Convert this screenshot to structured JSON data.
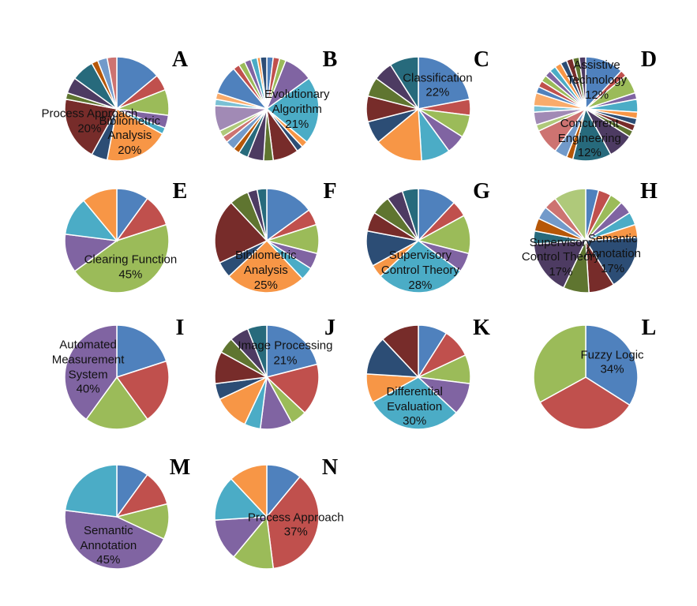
{
  "palette": [
    "#4F81BD",
    "#C0504D",
    "#9BBB59",
    "#8064A2",
    "#4BACC6",
    "#F79646",
    "#2C4D75",
    "#772C2A",
    "#5F7530",
    "#4D3B62",
    "#276A7C",
    "#B65708",
    "#729ACA",
    "#CD7371",
    "#AFC97A",
    "#A18AB5",
    "#7AC0D4",
    "#F9AB6B"
  ],
  "chart_data": [
    {
      "type": "pie",
      "title": "A",
      "values": [
        14,
        5,
        8,
        4,
        2,
        20,
        5,
        20,
        2,
        5,
        7,
        2,
        3,
        3
      ],
      "categories": [
        null,
        null,
        null,
        null,
        null,
        "Bibliometric Analysis",
        null,
        "Process Approach",
        null,
        null,
        null,
        null,
        null,
        null
      ],
      "value_labels": [
        null,
        null,
        null,
        null,
        null,
        "20%",
        null,
        "20%",
        null,
        null,
        null,
        null,
        null,
        null
      ]
    },
    {
      "type": "pie",
      "title": "B",
      "values": [
        2,
        2,
        2,
        9,
        21,
        2,
        2,
        8,
        3,
        5,
        3,
        2,
        3,
        2,
        2,
        8,
        2,
        2,
        9,
        2,
        2,
        2,
        2,
        1,
        2
      ],
      "categories": [
        null,
        null,
        null,
        null,
        "Evolutionary Algorithm",
        null,
        null,
        null,
        null,
        null,
        null,
        null,
        null,
        null,
        null,
        null,
        null,
        null,
        null,
        null,
        null,
        null,
        null,
        null,
        null
      ],
      "value_labels": [
        null,
        null,
        null,
        null,
        "21%",
        null,
        null,
        null,
        null,
        null,
        null,
        null,
        null,
        null,
        null,
        null,
        null,
        null,
        null,
        null,
        null,
        null,
        null,
        null,
        null
      ]
    },
    {
      "type": "pie",
      "title": "C",
      "values": [
        22,
        5,
        7,
        6,
        9,
        15,
        7,
        8,
        6,
        6,
        9
      ],
      "categories": [
        "Classification",
        null,
        null,
        null,
        null,
        null,
        null,
        null,
        null,
        null,
        null
      ],
      "value_labels": [
        "22%",
        null,
        null,
        null,
        null,
        null,
        null,
        null,
        null,
        null,
        null
      ]
    },
    {
      "type": "pie",
      "title": "D",
      "values": [
        12,
        2,
        6,
        2,
        4,
        2,
        2,
        2,
        2,
        8,
        12,
        2,
        4,
        8,
        2,
        4,
        2,
        4,
        2,
        2,
        2,
        2,
        2,
        2,
        2,
        2,
        2,
        2
      ],
      "categories": [
        "Assistive Technology",
        null,
        null,
        null,
        null,
        null,
        null,
        null,
        null,
        null,
        "Concurrent Engineering",
        null,
        null,
        null,
        null,
        null,
        null,
        null,
        null,
        null,
        null,
        null,
        null,
        null,
        null,
        null,
        null,
        null
      ],
      "value_labels": [
        "12%",
        null,
        null,
        null,
        null,
        null,
        null,
        null,
        null,
        null,
        "12%",
        null,
        null,
        null,
        null,
        null,
        null,
        null,
        null,
        null,
        null,
        null,
        null,
        null,
        null,
        null,
        null,
        null
      ]
    },
    {
      "type": "pie",
      "title": "E",
      "values": [
        10,
        10,
        45,
        12,
        12,
        11
      ],
      "categories": [
        null,
        null,
        "Clearing Function",
        null,
        null,
        null
      ],
      "value_labels": [
        null,
        null,
        "45%",
        null,
        null,
        null
      ]
    },
    {
      "type": "pie",
      "title": "F",
      "values": [
        15,
        5,
        9,
        5,
        4,
        25,
        5,
        20,
        6,
        3,
        3
      ],
      "categories": [
        null,
        null,
        null,
        null,
        null,
        "Bibliometric Analysis",
        null,
        null,
        null,
        null,
        null
      ],
      "value_labels": [
        null,
        null,
        null,
        null,
        null,
        "25%",
        null,
        null,
        null,
        null,
        null
      ]
    },
    {
      "type": "pie",
      "title": "G",
      "values": [
        12,
        5,
        12,
        6,
        28,
        4,
        11,
        6,
        6,
        5,
        5
      ],
      "categories": [
        null,
        null,
        null,
        null,
        "Supervisory Control Theory",
        null,
        null,
        null,
        null,
        null,
        null
      ],
      "value_labels": [
        null,
        null,
        null,
        null,
        "28%",
        null,
        null,
        null,
        null,
        null,
        null
      ]
    },
    {
      "type": "pie",
      "title": "H",
      "values": [
        4,
        4,
        4,
        4,
        4,
        4,
        17,
        8,
        8,
        17,
        4,
        4,
        4,
        4,
        10
      ],
      "categories": [
        null,
        null,
        null,
        null,
        null,
        null,
        "Semantic Annotation",
        null,
        null,
        "Supervisory Control Theory",
        null,
        null,
        null,
        null,
        null
      ],
      "value_labels": [
        null,
        null,
        null,
        null,
        null,
        null,
        "17%",
        null,
        null,
        "17%",
        null,
        null,
        null,
        null,
        null
      ]
    },
    {
      "type": "pie",
      "title": "I",
      "values": [
        20,
        20,
        20,
        40
      ],
      "categories": [
        null,
        null,
        null,
        "Automated Measurement System"
      ],
      "value_labels": [
        null,
        null,
        null,
        "40%"
      ]
    },
    {
      "type": "pie",
      "title": "J",
      "values": [
        21,
        16,
        5,
        10,
        5,
        11,
        5,
        10,
        5,
        6,
        6
      ],
      "categories": [
        "Image Processing",
        null,
        null,
        null,
        null,
        null,
        null,
        null,
        null,
        null,
        null
      ],
      "value_labels": [
        "21%",
        null,
        null,
        null,
        null,
        null,
        null,
        null,
        null,
        null,
        null
      ]
    },
    {
      "type": "pie",
      "title": "K",
      "values": [
        9,
        9,
        9,
        10,
        30,
        9,
        12,
        12
      ],
      "categories": [
        null,
        null,
        null,
        null,
        "Differential Evaluation",
        null,
        null,
        null
      ],
      "value_labels": [
        null,
        null,
        null,
        null,
        "30%",
        null,
        null,
        null
      ]
    },
    {
      "type": "pie",
      "title": "L",
      "values": [
        34,
        33,
        33
      ],
      "categories": [
        "Fuzzy Logic",
        null,
        null
      ],
      "value_labels": [
        "34%",
        null,
        null
      ]
    },
    {
      "type": "pie",
      "title": "M",
      "values": [
        10,
        11,
        11,
        45,
        23
      ],
      "categories": [
        null,
        null,
        null,
        "Semantic Annotation",
        null
      ],
      "value_labels": [
        null,
        null,
        null,
        "45%",
        null
      ]
    },
    {
      "type": "pie",
      "title": "N",
      "values": [
        11,
        37,
        13,
        13,
        14,
        12
      ],
      "categories": [
        null,
        "Process Approach",
        null,
        null,
        null,
        null
      ],
      "value_labels": [
        null,
        "37%",
        null,
        null,
        null,
        null
      ]
    }
  ]
}
